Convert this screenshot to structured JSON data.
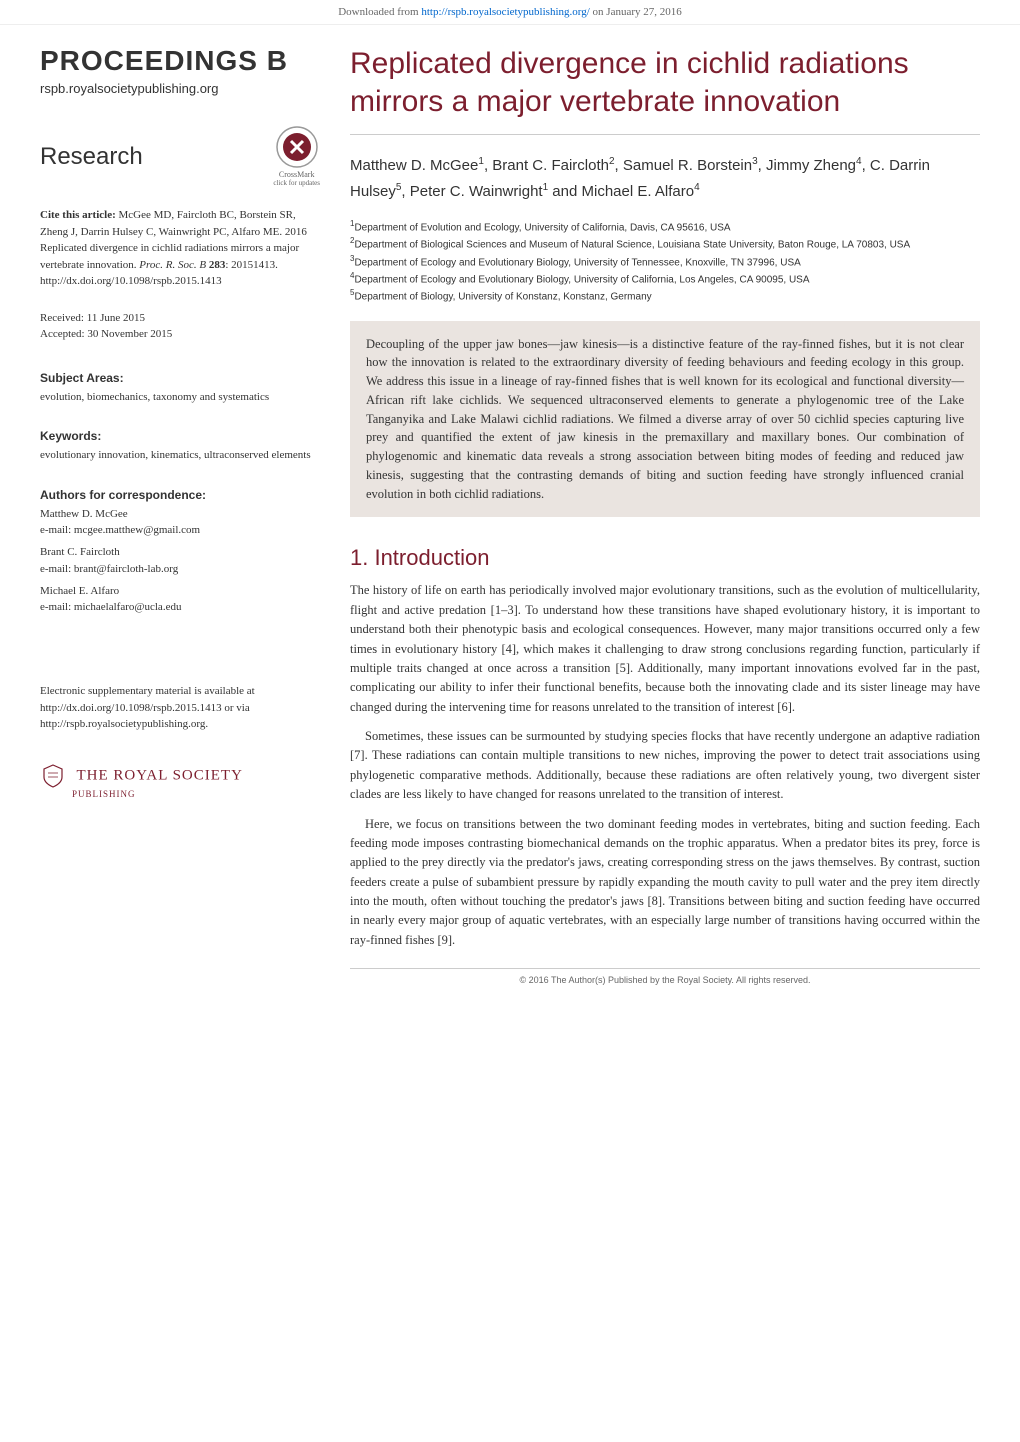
{
  "colors": {
    "accent": "#7c1e2e",
    "text": "#333333",
    "abstract_bg": "#eae4e0",
    "link": "#0066cc",
    "rule": "#cccccc"
  },
  "download_bar": {
    "prefix": "Downloaded from ",
    "url": "http://rspb.royalsocietypublishing.org/",
    "suffix": " on January 27, 2016"
  },
  "journal": {
    "name": "PROCEEDINGS B",
    "url": "rspb.royalsocietypublishing.org"
  },
  "article_type": "Research",
  "crossmark": {
    "label": "CrossMark",
    "sublabel": "click for updates"
  },
  "citation": {
    "label": "Cite this article:",
    "text": "McGee MD, Faircloth BC, Borstein SR, Zheng J, Darrin Hulsey C, Wainwright PC, Alfaro ME. 2016 Replicated divergence in cichlid radiations mirrors a major vertebrate innovation.",
    "journal": "Proc. R. Soc. B",
    "volume": "283",
    "article_number": ": 20151413.",
    "doi": "http://dx.doi.org/10.1098/rspb.2015.1413"
  },
  "dates": {
    "received": "Received: 11 June 2015",
    "accepted": "Accepted: 30 November 2015"
  },
  "subject_areas": {
    "heading": "Subject Areas:",
    "body": "evolution, biomechanics, taxonomy and systematics"
  },
  "keywords": {
    "heading": "Keywords:",
    "body": "evolutionary innovation, kinematics, ultraconserved elements"
  },
  "correspondence": {
    "heading": "Authors for correspondence:",
    "authors": [
      {
        "name": "Matthew D. McGee",
        "email": "e-mail: mcgee.matthew@gmail.com"
      },
      {
        "name": "Brant C. Faircloth",
        "email": "e-mail: brant@faircloth-lab.org"
      },
      {
        "name": "Michael E. Alfaro",
        "email": "e-mail: michaelalfaro@ucla.edu"
      }
    ]
  },
  "supplementary": "Electronic supplementary material is available at http://dx.doi.org/10.1098/rspb.2015.1413 or via http://rspb.royalsocietypublishing.org.",
  "publisher": {
    "name": "THE ROYAL SOCIETY",
    "sub": "PUBLISHING"
  },
  "title": "Replicated divergence in cichlid radiations mirrors a major vertebrate innovation",
  "authors_line": "Matthew D. McGee<sup>1</sup>, Brant C. Faircloth<sup>2</sup>, Samuel R. Borstein<sup>3</sup>, Jimmy Zheng<sup>4</sup>, C. Darrin Hulsey<sup>5</sup>, Peter C. Wainwright<sup>1</sup> and Michael E. Alfaro<sup>4</sup>",
  "affiliations": [
    "<sup>1</sup>Department of Evolution and Ecology, University of California, Davis, CA 95616, USA",
    "<sup>2</sup>Department of Biological Sciences and Museum of Natural Science, Louisiana State University, Baton Rouge, LA 70803, USA",
    "<sup>3</sup>Department of Ecology and Evolutionary Biology, University of Tennessee, Knoxville, TN 37996, USA",
    "<sup>4</sup>Department of Ecology and Evolutionary Biology, University of California, Los Angeles, CA 90095, USA",
    "<sup>5</sup>Department of Biology, University of Konstanz, Konstanz, Germany"
  ],
  "abstract": "Decoupling of the upper jaw bones—jaw kinesis—is a distinctive feature of the ray-finned fishes, but it is not clear how the innovation is related to the extraordinary diversity of feeding behaviours and feeding ecology in this group. We address this issue in a lineage of ray-finned fishes that is well known for its ecological and functional diversity—African rift lake cichlids. We sequenced ultraconserved elements to generate a phylogenomic tree of the Lake Tanganyika and Lake Malawi cichlid radiations. We filmed a diverse array of over 50 cichlid species capturing live prey and quantified the extent of jaw kinesis in the premaxillary and maxillary bones. Our combination of phylogenomic and kinematic data reveals a strong association between biting modes of feeding and reduced jaw kinesis, suggesting that the contrasting demands of biting and suction feeding have strongly influenced cranial evolution in both cichlid radiations.",
  "section1": {
    "heading": "1. Introduction",
    "paragraphs": [
      "The history of life on earth has periodically involved major evolutionary transitions, such as the evolution of multicellularity, flight and active predation [1–3]. To understand how these transitions have shaped evolutionary history, it is important to understand both their phenotypic basis and ecological consequences. However, many major transitions occurred only a few times in evolutionary history [4], which makes it challenging to draw strong conclusions regarding function, particularly if multiple traits changed at once across a transition [5]. Additionally, many important innovations evolved far in the past, complicating our ability to infer their functional benefits, because both the innovating clade and its sister lineage may have changed during the intervening time for reasons unrelated to the transition of interest [6].",
      "Sometimes, these issues can be surmounted by studying species flocks that have recently undergone an adaptive radiation [7]. These radiations can contain multiple transitions to new niches, improving the power to detect trait associations using phylogenetic comparative methods. Additionally, because these radiations are often relatively young, two divergent sister clades are less likely to have changed for reasons unrelated to the transition of interest.",
      "Here, we focus on transitions between the two dominant feeding modes in vertebrates, biting and suction feeding. Each feeding mode imposes contrasting biomechanical demands on the trophic apparatus. When a predator bites its prey, force is applied to the prey directly via the predator's jaws, creating corresponding stress on the jaws themselves. By contrast, suction feeders create a pulse of subambient pressure by rapidly expanding the mouth cavity to pull water and the prey item directly into the mouth, often without touching the predator's jaws [8]. Transitions between biting and suction feeding have occurred in nearly every major group of aquatic vertebrates, with an especially large number of transitions having occurred within the ray-finned fishes [9]."
    ]
  },
  "copyright": "© 2016 The Author(s) Published by the Royal Society. All rights reserved."
}
